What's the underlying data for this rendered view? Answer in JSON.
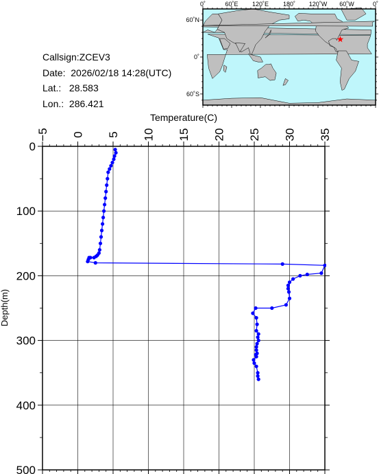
{
  "info": {
    "callsign": "Callsign:ZCEV3",
    "date": "Date:  2026/02/18 14:28(UTC)",
    "lat": "Lat.:   28.583",
    "lon": "Lon.:  286.421"
  },
  "map": {
    "top_ticks": [
      "0˚",
      "60˚E",
      "120˚E",
      "180˚",
      "120˚W",
      "60˚W",
      "0˚"
    ],
    "lat_ticks": [
      "60˚N",
      "0˚",
      "60˚S"
    ],
    "ocean_color": "#bff6fb",
    "land_color": "#bfbfbf",
    "marker_color": "#ff0000",
    "marker_icon": "star-icon",
    "marker_lon": 286.421,
    "marker_lat": 28.583
  },
  "chart_data": {
    "type": "line",
    "xlabel": "Temperature(C)",
    "ylabel": "Depth(m)",
    "xlim": [
      -5,
      35
    ],
    "ylim": [
      500,
      0
    ],
    "xticks": [
      "−5",
      "0",
      "5",
      "10",
      "15",
      "20",
      "25",
      "30",
      "35"
    ],
    "yticks": [
      "0",
      "100",
      "200",
      "300",
      "400",
      "500"
    ],
    "grid": true,
    "line_color": "#0000ff",
    "series": [
      {
        "temperature": [
          5.3,
          5.4,
          5.2,
          5.1,
          4.9,
          4.7,
          4.5,
          4.3,
          4.2,
          4.1,
          4.0,
          3.9,
          3.8,
          3.7,
          3.6,
          3.5,
          3.4,
          3.3,
          3.2,
          3.1,
          3.0,
          2.8,
          2.6,
          2.3,
          1.8,
          1.6,
          1.5,
          1.4,
          2.5,
          29.0,
          35.0,
          34.5,
          32.5,
          31.5,
          30.5,
          30.0,
          29.8,
          29.8,
          29.9,
          30.0,
          29.5,
          27.5,
          25.2,
          24.8,
          25.3,
          25.4,
          25.3,
          25.6,
          25.5,
          25.6,
          25.4,
          25.3,
          25.3,
          25.4,
          25.2,
          25.3,
          24.9,
          25.0,
          25.3,
          25.5,
          25.5,
          25.6
        ],
        "depth": [
          5,
          10,
          15,
          20,
          25,
          30,
          35,
          40,
          50,
          60,
          70,
          80,
          90,
          100,
          110,
          120,
          130,
          140,
          150,
          160,
          165,
          168,
          170,
          172,
          172,
          172,
          175,
          178,
          180,
          182,
          184,
          196,
          198,
          200,
          205,
          210,
          215,
          220,
          225,
          235,
          245,
          250,
          250,
          258,
          265,
          275,
          285,
          290,
          295,
          300,
          305,
          310,
          315,
          320,
          322,
          325,
          330,
          335,
          340,
          350,
          355,
          360
        ]
      }
    ]
  }
}
